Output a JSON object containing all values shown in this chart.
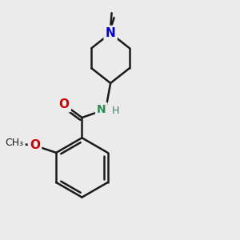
{
  "background_color": "#ebebeb",
  "bond_color": "#1a1a1a",
  "nitrogen_color": "#0000cd",
  "oxygen_color": "#cc0000",
  "nh_color": "#2e8b57",
  "line_width": 1.8,
  "font_size_N": 11,
  "font_size_O": 11,
  "font_size_NH": 10,
  "font_size_methyl": 9,
  "font_size_methoxy": 9,
  "dpi": 100,
  "fig_size": [
    3.0,
    3.0
  ],
  "xlim": [
    0.0,
    10.0
  ],
  "ylim": [
    0.0,
    10.0
  ]
}
